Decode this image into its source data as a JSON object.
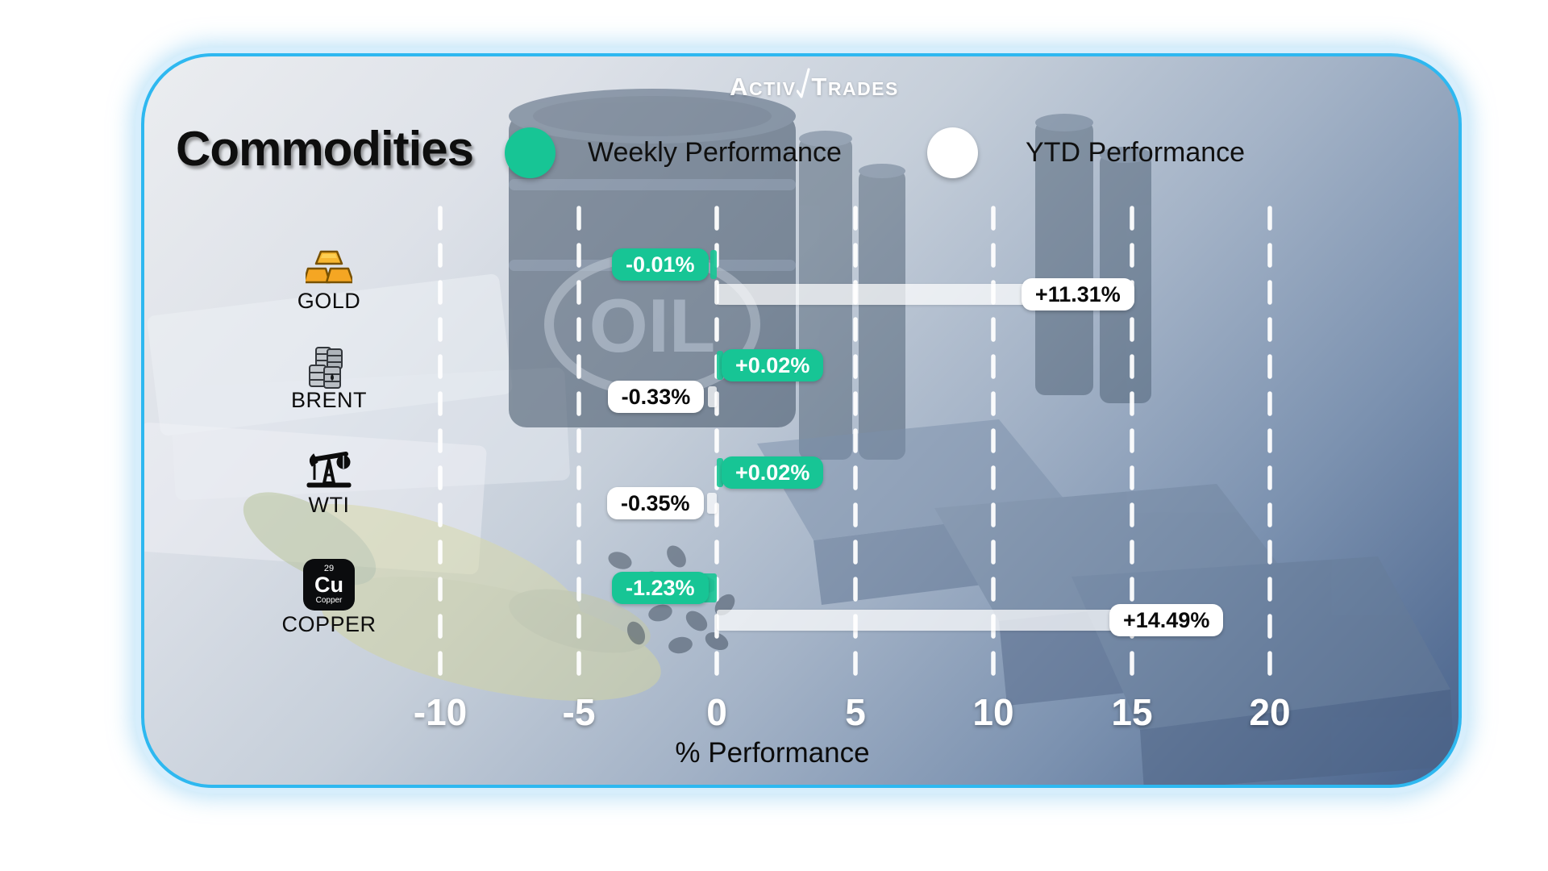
{
  "title": "Commodities",
  "logo": {
    "word1_initial": "A",
    "word1_rest": "CTIV",
    "word2_initial": "T",
    "word2_rest": "RADES"
  },
  "legend": {
    "weekly_label": "Weekly Performance",
    "ytd_label": "YTD Performance"
  },
  "axis": {
    "xlabel": "% Performance",
    "ticks": [
      "-10",
      "-5",
      "0",
      "5",
      "10",
      "15",
      "20"
    ]
  },
  "decor": {
    "oil_text": "OIL"
  },
  "icons": {
    "copper": {
      "number": "29",
      "symbol": "Cu",
      "caption": "Copper"
    }
  },
  "colors": {
    "weekly_green": "#17c595",
    "ytd_white": "#ffffff",
    "card_border": "#2eb8f0"
  },
  "rows": [
    {
      "name": "GOLD",
      "weekly": {
        "label": "-0.01%",
        "value": -0.01
      },
      "ytd": {
        "label": "+11.31%",
        "value": 11.31
      }
    },
    {
      "name": "BRENT",
      "weekly": {
        "label": "+0.02%",
        "value": 0.02
      },
      "ytd": {
        "label": "-0.33%",
        "value": -0.33
      }
    },
    {
      "name": "WTI",
      "weekly": {
        "label": "+0.02%",
        "value": 0.02
      },
      "ytd": {
        "label": "-0.35%",
        "value": -0.35
      }
    },
    {
      "name": "COPPER",
      "weekly": {
        "label": "-1.23%",
        "value": -1.23
      },
      "ytd": {
        "label": "+14.49%",
        "value": 14.49
      }
    }
  ],
  "chart_data": {
    "type": "bar",
    "orientation": "horizontal",
    "title": "Commodities",
    "categories": [
      "GOLD",
      "BRENT",
      "WTI",
      "COPPER"
    ],
    "series": [
      {
        "name": "Weekly Performance",
        "color": "#17c595",
        "values": [
          -0.01,
          0.02,
          0.02,
          -1.23
        ]
      },
      {
        "name": "YTD Performance",
        "color": "#ffffff",
        "values": [
          11.31,
          -0.33,
          -0.35,
          14.49
        ]
      }
    ],
    "xlabel": "% Performance",
    "xticks": [
      -10,
      -5,
      0,
      5,
      10,
      15,
      20
    ],
    "xlim": [
      -12.5,
      22.5
    ],
    "grid": "vertical-dashed-white",
    "legend_position": "top",
    "value_labels": true,
    "brand": "ActivTrades"
  }
}
